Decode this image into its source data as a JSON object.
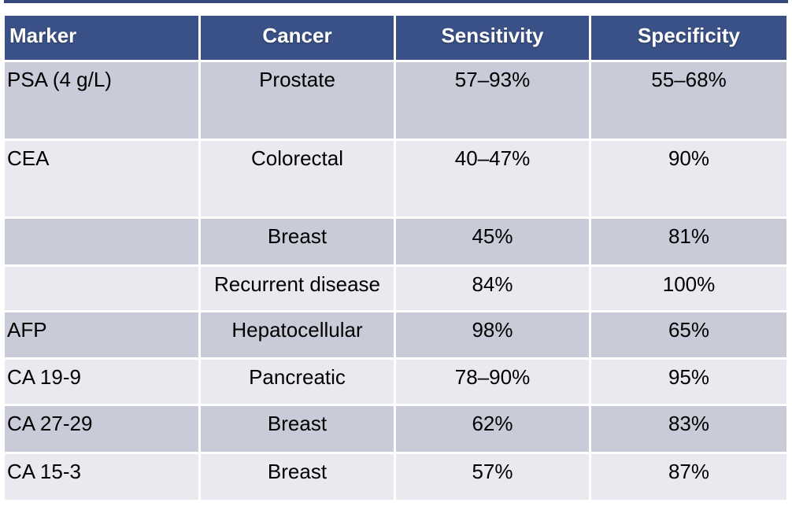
{
  "chart_data": {
    "type": "table",
    "title": "",
    "columns": [
      "Marker",
      "Cancer",
      "Sensitivity",
      "Specificity"
    ],
    "rows": [
      {
        "marker": "PSA (4 g/L)",
        "cancer": "Prostate",
        "sensitivity": "57–93%",
        "specificity": "55–68%"
      },
      {
        "marker": "CEA",
        "cancer": "Colorectal",
        "sensitivity": "40–47%",
        "specificity": "90%"
      },
      {
        "marker": "",
        "cancer": "Breast",
        "sensitivity": "45%",
        "specificity": "81%"
      },
      {
        "marker": "",
        "cancer": "Recurrent disease",
        "sensitivity": "84%",
        "specificity": "100%"
      },
      {
        "marker": "AFP",
        "cancer": "Hepatocellular",
        "sensitivity": "98%",
        "specificity": "65%"
      },
      {
        "marker": "CA 19-9",
        "cancer": "Pancreatic",
        "sensitivity": "78–90%",
        "specificity": "95%"
      },
      {
        "marker": "CA 27-29",
        "cancer": "Breast",
        "sensitivity": "62%",
        "specificity": "83%"
      },
      {
        "marker": "CA 15-3",
        "cancer": "Breast",
        "sensitivity": "57%",
        "specificity": "87%"
      }
    ],
    "layout": {
      "header_alignment": [
        "left",
        "center",
        "center",
        "center"
      ],
      "banding": "alternating rows, first body row dark",
      "grid": "white 3px gaps between cells"
    },
    "colors": {
      "header_bg": "#3A5187",
      "header_text": "#FFFFFF",
      "row_band_dark": "#C9CBD8",
      "row_band_light": "#E9EAEF",
      "top_accent_line": "#35497B",
      "body_text": "#000000",
      "page_bg": "#FFFFFF"
    }
  }
}
